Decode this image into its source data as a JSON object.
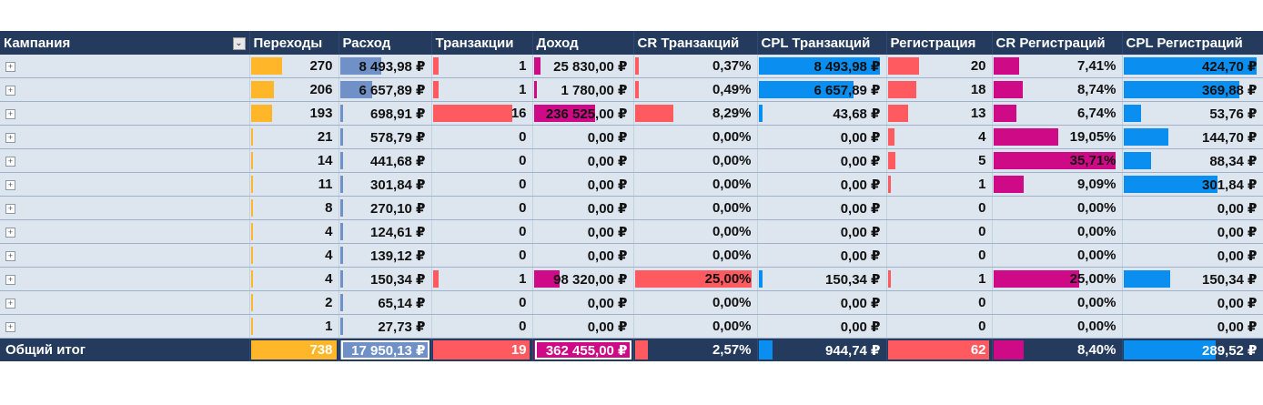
{
  "columns": [
    "Кампания",
    "Переходы",
    "Расход",
    "Транзакции",
    "Доход",
    "CR Транзакций",
    "CPL Транзакций",
    "Регистрация",
    "CR Регистраций",
    "CPL Регистраций"
  ],
  "colors": {
    "header_bg": "#243b5e",
    "row_bg": "#dde5ef",
    "perekhody_bar": "#ffb628",
    "raskhod_bar": "#6f91c8",
    "tranzakcii_bar": "#ff5a5f",
    "dokhod_bar": "#cf0a86",
    "cr_tr_bar": "#ff5a5f",
    "cpl_tr_bar": "#0a8ef0",
    "registr_bar": "#ff5a5f",
    "cr_reg_bar": "#cf0a86",
    "cpl_reg_bar": "#0a8ef0"
  },
  "rows": [
    {
      "perekhody": "270",
      "raskhod": "8 493,98 ₽",
      "tranzakcii": "1",
      "dokhod": "25 830,00 ₽",
      "cr_tr": "0,37%",
      "cpl_tr": "8 493,98 ₽",
      "registr": "20",
      "cr_reg": "7,41%",
      "cpl_reg": "424,70 ₽"
    },
    {
      "perekhody": "206",
      "raskhod": "6 657,89 ₽",
      "tranzakcii": "1",
      "dokhod": "1 780,00 ₽",
      "cr_tr": "0,49%",
      "cpl_tr": "6 657,89 ₽",
      "registr": "18",
      "cr_reg": "8,74%",
      "cpl_reg": "369,88 ₽"
    },
    {
      "perekhody": "193",
      "raskhod": "698,91 ₽",
      "tranzakcii": "16",
      "dokhod": "236 525,00 ₽",
      "cr_tr": "8,29%",
      "cpl_tr": "43,68 ₽",
      "registr": "13",
      "cr_reg": "6,74%",
      "cpl_reg": "53,76 ₽"
    },
    {
      "perekhody": "21",
      "raskhod": "578,79 ₽",
      "tranzakcii": "0",
      "dokhod": "0,00 ₽",
      "cr_tr": "0,00%",
      "cpl_tr": "0,00 ₽",
      "registr": "4",
      "cr_reg": "19,05%",
      "cpl_reg": "144,70 ₽"
    },
    {
      "perekhody": "14",
      "raskhod": "441,68 ₽",
      "tranzakcii": "0",
      "dokhod": "0,00 ₽",
      "cr_tr": "0,00%",
      "cpl_tr": "0,00 ₽",
      "registr": "5",
      "cr_reg": "35,71%",
      "cpl_reg": "88,34 ₽"
    },
    {
      "perekhody": "11",
      "raskhod": "301,84 ₽",
      "tranzakcii": "0",
      "dokhod": "0,00 ₽",
      "cr_tr": "0,00%",
      "cpl_tr": "0,00 ₽",
      "registr": "1",
      "cr_reg": "9,09%",
      "cpl_reg": "301,84 ₽"
    },
    {
      "perekhody": "8",
      "raskhod": "270,10 ₽",
      "tranzakcii": "0",
      "dokhod": "0,00 ₽",
      "cr_tr": "0,00%",
      "cpl_tr": "0,00 ₽",
      "registr": "0",
      "cr_reg": "0,00%",
      "cpl_reg": "0,00 ₽"
    },
    {
      "perekhody": "4",
      "raskhod": "124,61 ₽",
      "tranzakcii": "0",
      "dokhod": "0,00 ₽",
      "cr_tr": "0,00%",
      "cpl_tr": "0,00 ₽",
      "registr": "0",
      "cr_reg": "0,00%",
      "cpl_reg": "0,00 ₽"
    },
    {
      "perekhody": "4",
      "raskhod": "139,12 ₽",
      "tranzakcii": "0",
      "dokhod": "0,00 ₽",
      "cr_tr": "0,00%",
      "cpl_tr": "0,00 ₽",
      "registr": "0",
      "cr_reg": "0,00%",
      "cpl_reg": "0,00 ₽"
    },
    {
      "perekhody": "4",
      "raskhod": "150,34 ₽",
      "tranzakcii": "1",
      "dokhod": "98 320,00 ₽",
      "cr_tr": "25,00%",
      "cpl_tr": "150,34 ₽",
      "registr": "1",
      "cr_reg": "25,00%",
      "cpl_reg": "150,34 ₽"
    },
    {
      "perekhody": "2",
      "raskhod": "65,14 ₽",
      "tranzakcii": "0",
      "dokhod": "0,00 ₽",
      "cr_tr": "0,00%",
      "cpl_tr": "0,00 ₽",
      "registr": "0",
      "cr_reg": "0,00%",
      "cpl_reg": "0,00 ₽"
    },
    {
      "perekhody": "1",
      "raskhod": "27,73 ₽",
      "tranzakcii": "0",
      "dokhod": "0,00 ₽",
      "cr_tr": "0,00%",
      "cpl_tr": "0,00 ₽",
      "registr": "0",
      "cr_reg": "0,00%",
      "cpl_reg": "0,00 ₽"
    }
  ],
  "total": {
    "label": "Общий итог",
    "perekhody": "738",
    "raskhod": "17 950,13 ₽",
    "tranzakcii": "19",
    "dokhod": "362 455,00 ₽",
    "cr_tr": "2,57%",
    "cpl_tr": "944,74 ₽",
    "registr": "62",
    "cr_reg": "8,40%",
    "cpl_reg": "289,52 ₽"
  },
  "data_bar_fill": {
    "perekhody": [
      0.37,
      0.28,
      0.26,
      0.03,
      0.02,
      0.015,
      0.011,
      0.005,
      0.005,
      0.005,
      0.003,
      0.001
    ],
    "raskhod": [
      0.47,
      0.37,
      0.04,
      0.03,
      0.025,
      0.017,
      0.015,
      0.007,
      0.008,
      0.008,
      0.004,
      0.002
    ],
    "tranzakcii": [
      0.06,
      0.06,
      0.84,
      0,
      0,
      0,
      0,
      0,
      0,
      0.06,
      0,
      0
    ],
    "dokhod": [
      0.07,
      0.005,
      0.65,
      0,
      0,
      0,
      0,
      0,
      0,
      0.27,
      0,
      0
    ],
    "cr_tr": [
      0.015,
      0.02,
      0.33,
      0,
      0,
      0,
      0,
      0,
      0,
      1.0,
      0,
      0
    ],
    "cpl_tr": [
      1.0,
      0.78,
      0.005,
      0,
      0,
      0,
      0,
      0,
      0,
      0.018,
      0,
      0
    ],
    "registr": [
      0.32,
      0.29,
      0.21,
      0.065,
      0.08,
      0.016,
      0,
      0,
      0,
      0.016,
      0,
      0
    ],
    "cr_reg": [
      0.21,
      0.24,
      0.19,
      0.53,
      1.0,
      0.25,
      0,
      0,
      0,
      0.7,
      0,
      0
    ],
    "cpl_reg": [
      1.0,
      0.87,
      0.13,
      0.34,
      0.21,
      0.71,
      0,
      0,
      0,
      0.35,
      0,
      0
    ]
  },
  "total_bar_fill": {
    "perekhody": 1.0,
    "raskhod": 1.0,
    "tranzakcii": 1.0,
    "dokhod": 1.0,
    "cr_tr": 0.11,
    "cpl_tr": 0.11,
    "registr": 1.0,
    "cr_reg": 0.24,
    "cpl_reg": 0.68
  }
}
